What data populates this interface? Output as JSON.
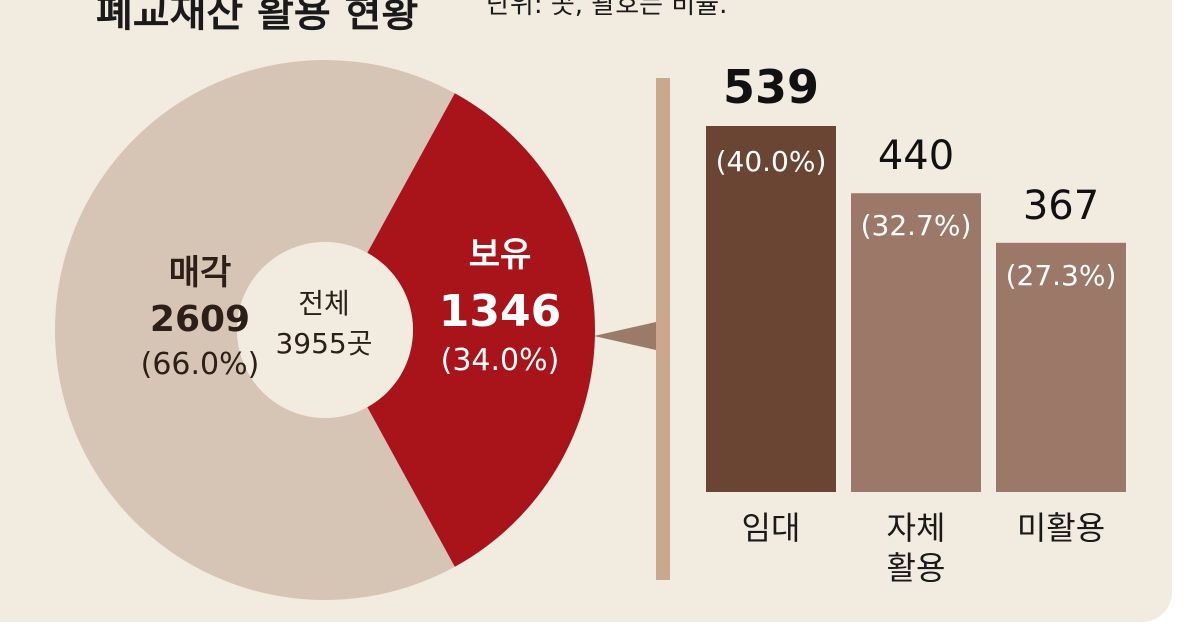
{
  "header": {
    "title": "폐교재산 활용 현황",
    "unit_note": "단위: 곳, 괄호는 비율."
  },
  "colors": {
    "background": "#f1ebe0",
    "sell": "#d6c4b5",
    "hold": "#a8141a",
    "bar_rent": "#6b4533",
    "bar_other": "#9c7868",
    "divider": "#c9a88e"
  },
  "chart_data": [
    {
      "type": "pie",
      "center_label": "전체",
      "center_value": "3955곳",
      "total": 3955,
      "slices": [
        {
          "name": "매각",
          "value": 2609,
          "value_label": "2609",
          "percent_label": "(66.0%)"
        },
        {
          "name": "보유",
          "value": 1346,
          "value_label": "1346",
          "percent_label": "(34.0%)"
        }
      ]
    },
    {
      "type": "bar",
      "categories": [
        "임대",
        "자체\n활용",
        "미활용"
      ],
      "values": [
        539,
        440,
        367
      ],
      "value_labels": [
        "539",
        "440",
        "367"
      ],
      "percent_labels": [
        "(40.0%)",
        "(32.7%)",
        "(27.3%)"
      ]
    }
  ]
}
